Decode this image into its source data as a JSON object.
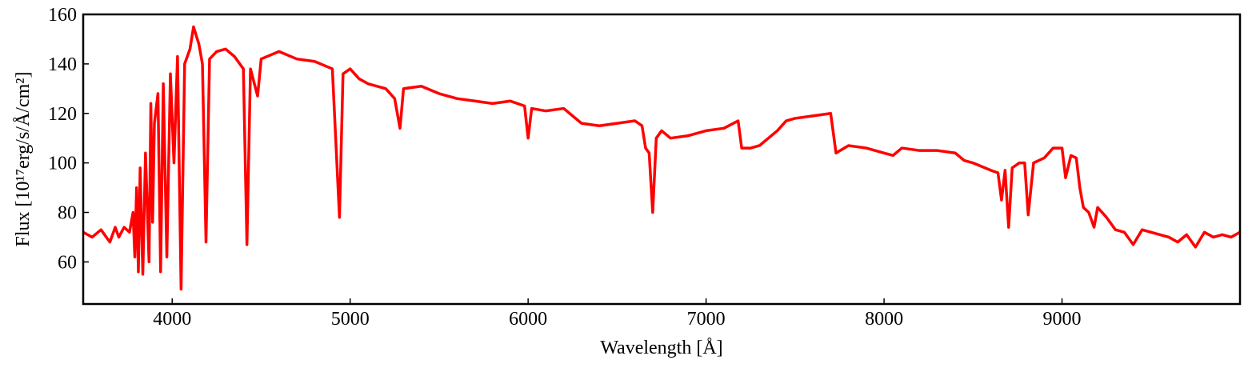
{
  "chart_data": {
    "type": "line",
    "xlabel": "Wavelength [Å]",
    "ylabel": "Flux [10¹⁷erg/s/Å/cm²]",
    "xlim": [
      3500,
      10000
    ],
    "ylim": [
      43,
      160
    ],
    "xticks": [
      4000,
      5000,
      6000,
      7000,
      8000,
      9000
    ],
    "yticks": [
      60,
      80,
      100,
      120,
      140,
      160
    ],
    "x": [
      3500,
      3550,
      3600,
      3650,
      3680,
      3700,
      3730,
      3760,
      3780,
      3790,
      3800,
      3810,
      3820,
      3835,
      3850,
      3870,
      3880,
      3890,
      3900,
      3920,
      3935,
      3950,
      3970,
      3990,
      4010,
      4030,
      4050,
      4070,
      4100,
      4120,
      4150,
      4170,
      4190,
      4210,
      4250,
      4300,
      4350,
      4400,
      4420,
      4440,
      4480,
      4500,
      4600,
      4700,
      4800,
      4900,
      4940,
      4960,
      5000,
      5050,
      5100,
      5200,
      5250,
      5280,
      5300,
      5400,
      5500,
      5600,
      5700,
      5800,
      5900,
      5980,
      6000,
      6020,
      6100,
      6200,
      6250,
      6300,
      6400,
      6500,
      6600,
      6640,
      6660,
      6680,
      6700,
      6720,
      6750,
      6800,
      6900,
      7000,
      7100,
      7180,
      7200,
      7250,
      7300,
      7400,
      7450,
      7500,
      7600,
      7700,
      7730,
      7800,
      7900,
      8000,
      8050,
      8100,
      8200,
      8300,
      8400,
      8450,
      8500,
      8600,
      8640,
      8660,
      8680,
      8700,
      8720,
      8760,
      8790,
      8810,
      8840,
      8900,
      8950,
      9000,
      9020,
      9050,
      9080,
      9100,
      9120,
      9150,
      9180,
      9200,
      9250,
      9300,
      9350,
      9400,
      9450,
      9500,
      9600,
      9650,
      9700,
      9750,
      9800,
      9850,
      9900,
      9950,
      10000
    ],
    "series": [
      {
        "color": "#ff0000",
        "values": [
          72,
          70,
          73,
          68,
          74,
          70,
          74,
          72,
          80,
          62,
          90,
          56,
          98,
          55,
          104,
          60,
          124,
          76,
          116,
          128,
          56,
          132,
          62,
          136,
          100,
          143,
          49,
          140,
          146,
          155,
          148,
          140,
          68,
          142,
          145,
          146,
          143,
          138,
          67,
          138,
          127,
          142,
          145,
          142,
          141,
          138,
          78,
          136,
          138,
          134,
          132,
          130,
          126,
          114,
          130,
          131,
          128,
          126,
          125,
          124,
          125,
          123,
          110,
          122,
          121,
          122,
          119,
          116,
          115,
          116,
          117,
          115,
          106,
          104,
          80,
          110,
          113,
          110,
          111,
          113,
          114,
          117,
          106,
          106,
          107,
          113,
          117,
          118,
          119,
          120,
          104,
          107,
          106,
          104,
          103,
          106,
          105,
          105,
          104,
          101,
          100,
          97,
          96,
          85,
          97,
          74,
          98,
          100,
          100,
          79,
          100,
          102,
          106,
          106,
          94,
          103,
          102,
          90,
          82,
          80,
          74,
          82,
          78,
          73,
          72,
          67,
          73,
          72,
          70,
          68,
          71,
          66,
          72,
          70,
          71,
          70,
          72
        ]
      }
    ]
  }
}
